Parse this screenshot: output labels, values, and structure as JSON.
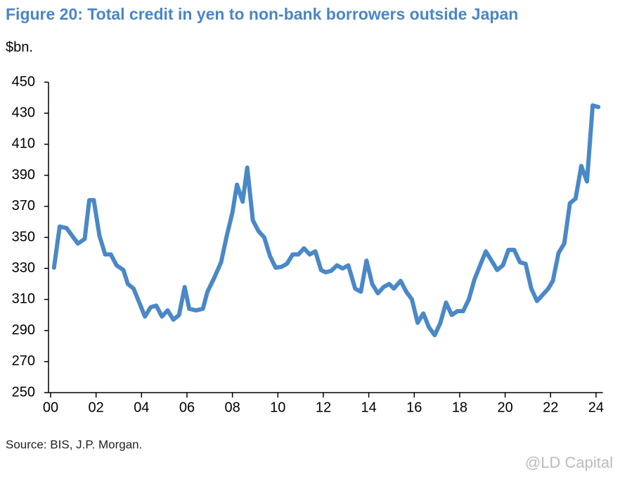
{
  "chart_data": {
    "type": "line",
    "title": "Figure 20: Total credit in yen to non-bank borrowers outside Japan",
    "y_label": "$bn.",
    "source": "Source: BIS, J.P. Morgan.",
    "watermark": "@LD Capital",
    "color": "#4a88c7",
    "x": [
      2000.15,
      2000.4,
      2000.7,
      2001.2,
      2001.5,
      2001.7,
      2001.9,
      2002.15,
      2002.4,
      2002.65,
      2002.9,
      2003.2,
      2003.4,
      2003.65,
      2003.9,
      2004.15,
      2004.4,
      2004.65,
      2004.9,
      2005.15,
      2005.4,
      2005.65,
      2005.9,
      2006.1,
      2006.4,
      2006.7,
      2006.9,
      2007.2,
      2007.5,
      2007.75,
      2008.0,
      2008.2,
      2008.45,
      2008.65,
      2008.9,
      2009.15,
      2009.4,
      2009.65,
      2009.9,
      2010.15,
      2010.4,
      2010.65,
      2010.9,
      2011.15,
      2011.4,
      2011.65,
      2011.9,
      2012.1,
      2012.35,
      2012.6,
      2012.85,
      2013.1,
      2013.4,
      2013.65,
      2013.9,
      2014.15,
      2014.4,
      2014.65,
      2014.9,
      2015.1,
      2015.4,
      2015.65,
      2015.9,
      2016.15,
      2016.4,
      2016.65,
      2016.9,
      2017.15,
      2017.4,
      2017.65,
      2017.9,
      2018.15,
      2018.4,
      2018.65,
      2018.9,
      2019.15,
      2019.4,
      2019.65,
      2019.9,
      2020.15,
      2020.4,
      2020.65,
      2020.9,
      2021.15,
      2021.4,
      2021.65,
      2021.9,
      2022.1,
      2022.35,
      2022.6,
      2022.85,
      2023.1,
      2023.35,
      2023.6,
      2023.85,
      2024.1
    ],
    "values": [
      330.5,
      357,
      356,
      346,
      349,
      374,
      374,
      351,
      339,
      339,
      332,
      329,
      320,
      317,
      308,
      299,
      305,
      306,
      299,
      303,
      297,
      300,
      318,
      304,
      303,
      304,
      315,
      324,
      334,
      351,
      366,
      384,
      373,
      395,
      361,
      354,
      350,
      338,
      330.5,
      331,
      333,
      339,
      339,
      343,
      339,
      341,
      329,
      327.5,
      328.5,
      332,
      330,
      332,
      317,
      315,
      335,
      320,
      314,
      318,
      320,
      317,
      322,
      315,
      310,
      295,
      301,
      292,
      287,
      295,
      308,
      300,
      302.5,
      302.5,
      310,
      323,
      332,
      341,
      335,
      329,
      332,
      342,
      342,
      334,
      333,
      317,
      309,
      313,
      317,
      322,
      340,
      346,
      372,
      375,
      396,
      386,
      435,
      434
    ],
    "xlim": [
      2000,
      2024.3
    ],
    "xticks": [
      {
        "value": 2000,
        "label": "00"
      },
      {
        "value": 2002,
        "label": "02"
      },
      {
        "value": 2004,
        "label": "04"
      },
      {
        "value": 2006,
        "label": "06"
      },
      {
        "value": 2008,
        "label": "08"
      },
      {
        "value": 2010,
        "label": "10"
      },
      {
        "value": 2012,
        "label": "12"
      },
      {
        "value": 2014,
        "label": "14"
      },
      {
        "value": 2016,
        "label": "16"
      },
      {
        "value": 2018,
        "label": "18"
      },
      {
        "value": 2020,
        "label": "20"
      },
      {
        "value": 2022,
        "label": "22"
      },
      {
        "value": 2024,
        "label": "24"
      }
    ],
    "ylim": [
      250,
      450
    ],
    "yticks": [
      250,
      270,
      290,
      310,
      330,
      350,
      370,
      390,
      410,
      430,
      450
    ]
  }
}
